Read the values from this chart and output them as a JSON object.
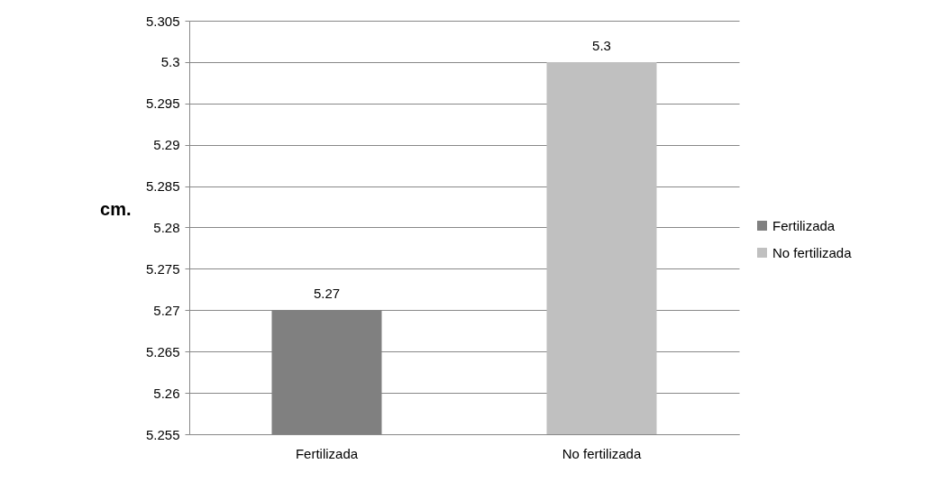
{
  "chart_data": {
    "type": "bar",
    "ylabel": "cm.",
    "categories": [
      "Fertilizada",
      "No fertilizada"
    ],
    "series": [
      {
        "name": "Fertilizada",
        "color": "#808080",
        "values": [
          5.27,
          null
        ]
      },
      {
        "name": "No fertilizada",
        "color": "#c0c0c0",
        "values": [
          null,
          5.3
        ]
      }
    ],
    "ylim": [
      5.255,
      5.305
    ],
    "yticks": [
      5.255,
      5.26,
      5.265,
      5.27,
      5.275,
      5.28,
      5.285,
      5.29,
      5.295,
      5.3,
      5.305
    ],
    "grid": "y",
    "legend": "right",
    "data_labels": true
  }
}
